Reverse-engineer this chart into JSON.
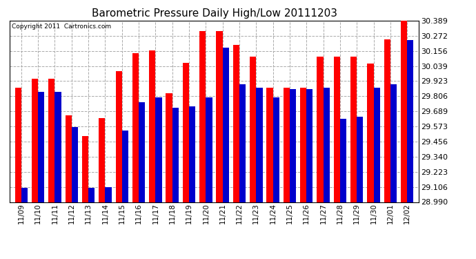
{
  "title": "Barometric Pressure Daily High/Low 20111203",
  "copyright": "Copyright 2011  Cartronics.com",
  "dates": [
    "11/09",
    "11/10",
    "11/11",
    "11/12",
    "11/13",
    "11/14",
    "11/15",
    "11/16",
    "11/17",
    "11/18",
    "11/19",
    "11/20",
    "11/21",
    "11/22",
    "11/23",
    "11/24",
    "11/25",
    "11/26",
    "11/27",
    "11/28",
    "11/29",
    "11/30",
    "12/01",
    "12/02"
  ],
  "highs": [
    29.87,
    29.94,
    29.94,
    29.66,
    29.5,
    29.64,
    30.0,
    30.14,
    30.16,
    29.83,
    30.065,
    30.31,
    30.31,
    30.2,
    30.11,
    29.87,
    29.87,
    29.87,
    30.11,
    30.11,
    30.11,
    30.06,
    30.245,
    30.389
  ],
  "lows": [
    29.1,
    29.84,
    29.84,
    29.57,
    29.1,
    29.106,
    29.54,
    29.76,
    29.8,
    29.72,
    29.73,
    29.8,
    30.18,
    29.9,
    29.87,
    29.8,
    29.86,
    29.86,
    29.87,
    29.63,
    29.65,
    29.87,
    29.9,
    30.24
  ],
  "high_color": "#ff0000",
  "low_color": "#0000cc",
  "bg_color": "#ffffff",
  "grid_color": "#aaaaaa",
  "ymin": 28.99,
  "ymax": 30.389,
  "yticks": [
    28.99,
    29.106,
    29.223,
    29.34,
    29.456,
    29.573,
    29.689,
    29.806,
    29.923,
    30.039,
    30.156,
    30.272,
    30.389
  ],
  "figwidth": 6.9,
  "figheight": 3.75,
  "dpi": 100
}
